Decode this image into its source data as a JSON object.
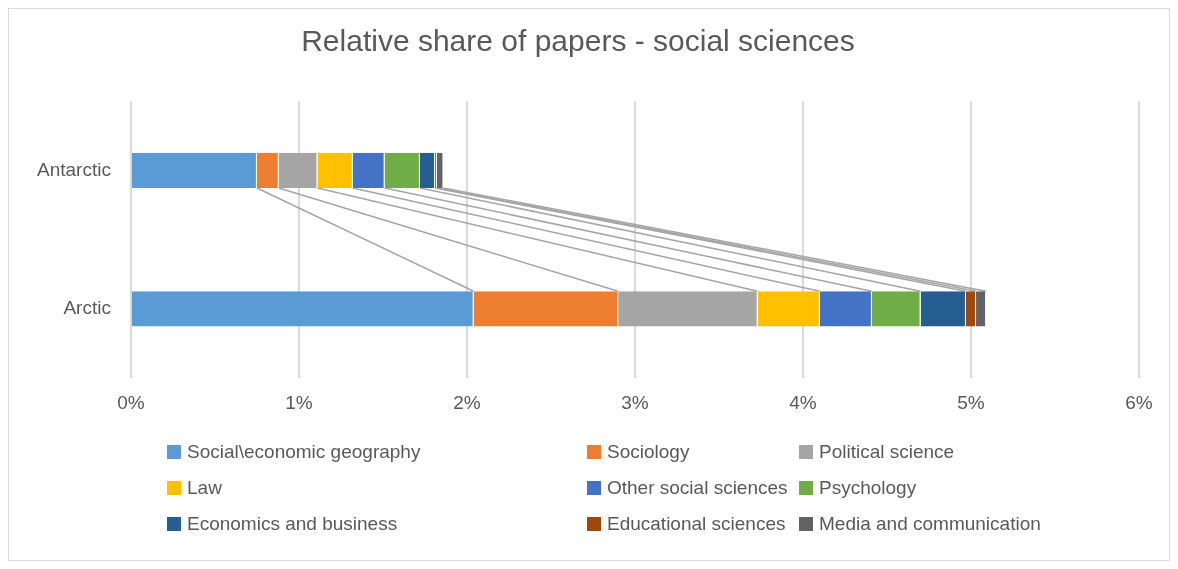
{
  "chart_data": {
    "type": "bar",
    "title": "Relative share of papers - social sciences",
    "orientation": "horizontal",
    "stacked": true,
    "categories": [
      "Antarctic",
      "Arctic"
    ],
    "series": [
      {
        "name": "Social\\economic geography",
        "color": "#5b9bd5",
        "values": [
          0.75,
          2.04
        ]
      },
      {
        "name": "Sociology",
        "color": "#ed7d31",
        "values": [
          0.13,
          0.86
        ]
      },
      {
        "name": "Political science",
        "color": "#a5a5a5",
        "values": [
          0.23,
          0.83
        ]
      },
      {
        "name": "Law",
        "color": "#ffc000",
        "values": [
          0.21,
          0.37
        ]
      },
      {
        "name": "Other social sciences",
        "color": "#4472c4",
        "values": [
          0.19,
          0.31
        ]
      },
      {
        "name": "Psychology",
        "color": "#70ad47",
        "values": [
          0.21,
          0.29
        ]
      },
      {
        "name": "Economics and business",
        "color": "#255e91",
        "values": [
          0.09,
          0.27
        ]
      },
      {
        "name": "Educational sciences",
        "color": "#9e480e",
        "values": [
          0.01,
          0.06
        ]
      },
      {
        "name": "Media and communication",
        "color": "#636363",
        "values": [
          0.04,
          0.06
        ]
      }
    ],
    "xlim": [
      0,
      6
    ],
    "xticks": [
      {
        "value": 0,
        "label": "0%"
      },
      {
        "value": 1,
        "label": "1%"
      },
      {
        "value": 2,
        "label": "2%"
      },
      {
        "value": 3,
        "label": "3%"
      },
      {
        "value": 4,
        "label": "4%"
      },
      {
        "value": 5,
        "label": "5%"
      },
      {
        "value": 6,
        "label": "6%"
      }
    ],
    "grid": "x",
    "legend": "bottom"
  }
}
